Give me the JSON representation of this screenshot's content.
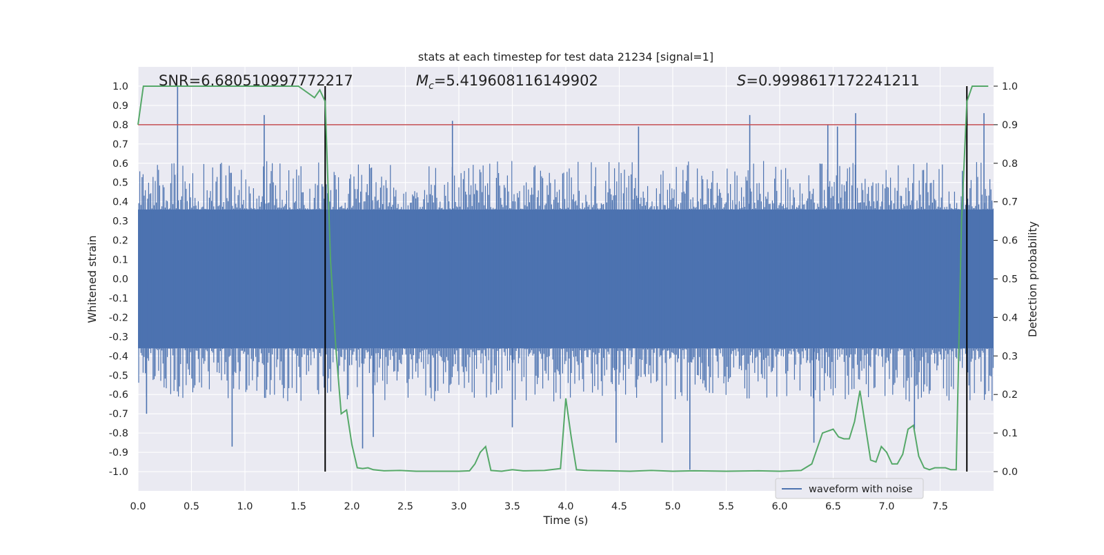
{
  "chart_data": {
    "type": "line",
    "title": "stats at each timestep for test data 21234 [signal=1]",
    "xlabel": "Time (s)",
    "ylabel": "Whitened strain",
    "y2label": "Detection probability",
    "xlim": [
      0.0,
      8.0
    ],
    "ylim": [
      -1.1,
      1.1
    ],
    "y2lim": [
      -0.05,
      1.05
    ],
    "xticks": [
      "0.0",
      "0.5",
      "1.0",
      "1.5",
      "2.0",
      "2.5",
      "3.0",
      "3.5",
      "4.0",
      "4.5",
      "5.0",
      "5.5",
      "6.0",
      "6.5",
      "7.0",
      "7.5"
    ],
    "yticks": [
      "1.0",
      "0.9",
      "0.8",
      "0.7",
      "0.6",
      "0.5",
      "0.4",
      "0.3",
      "0.2",
      "0.1",
      "0.0",
      "-0.1",
      "-0.2",
      "-0.3",
      "-0.4",
      "-0.5",
      "-0.6",
      "-0.7",
      "-0.8",
      "-0.9",
      "-1.0"
    ],
    "y2ticks": [
      "1.0",
      "0.9",
      "0.8",
      "0.7",
      "0.6",
      "0.5",
      "0.4",
      "0.3",
      "0.2",
      "0.1",
      "0.0"
    ],
    "grid": true,
    "legend": {
      "position": "bottom-right",
      "entries": [
        "waveform with noise"
      ]
    },
    "annotations": {
      "snr": "SNR=6.680510997772217",
      "mc_sym": "M",
      "mc_sub": "c",
      "mc_val": "=5.419608116149902",
      "s_sym": "S",
      "s_val": "=0.9998617172241211"
    },
    "threshold": {
      "value": 0.9,
      "axis": "y2",
      "color": "#c44e52"
    },
    "event_lines": {
      "x": [
        1.75,
        7.75
      ],
      "color": "#000000"
    },
    "waveform": {
      "name": "waveform with noise",
      "color": "#4c72b0",
      "band": 0.36,
      "spike_envelope": 0.6,
      "spikes": [
        {
          "x": 0.37,
          "y": 1.0
        },
        {
          "x": 0.08,
          "y": -0.7
        },
        {
          "x": 0.88,
          "y": -0.87
        },
        {
          "x": 1.18,
          "y": 0.85
        },
        {
          "x": 1.75,
          "y": 0.98
        },
        {
          "x": 2.1,
          "y": -0.88
        },
        {
          "x": 2.2,
          "y": -0.82
        },
        {
          "x": 2.94,
          "y": 0.82
        },
        {
          "x": 3.5,
          "y": -0.77
        },
        {
          "x": 4.68,
          "y": 0.79
        },
        {
          "x": 4.47,
          "y": -0.85
        },
        {
          "x": 4.9,
          "y": -0.85
        },
        {
          "x": 5.16,
          "y": -0.99
        },
        {
          "x": 5.72,
          "y": 0.85
        },
        {
          "x": 6.32,
          "y": -0.85
        },
        {
          "x": 6.45,
          "y": 0.8
        },
        {
          "x": 6.54,
          "y": 0.79
        },
        {
          "x": 6.71,
          "y": 0.86
        },
        {
          "x": 7.91,
          "y": 0.86
        },
        {
          "x": 7.26,
          "y": -0.78
        }
      ]
    },
    "probability": {
      "name": "detection probability",
      "color": "#55a868",
      "x": [
        0.0,
        0.05,
        0.15,
        0.3,
        0.6,
        1.0,
        1.3,
        1.5,
        1.6,
        1.65,
        1.7,
        1.75,
        1.8,
        1.85,
        1.9,
        1.95,
        2.0,
        2.05,
        2.1,
        2.15,
        2.2,
        2.3,
        2.45,
        2.6,
        2.8,
        3.0,
        3.1,
        3.15,
        3.2,
        3.25,
        3.3,
        3.4,
        3.5,
        3.6,
        3.8,
        3.95,
        4.0,
        4.05,
        4.1,
        4.2,
        4.4,
        4.6,
        4.8,
        5.0,
        5.2,
        5.5,
        5.8,
        6.0,
        6.2,
        6.3,
        6.4,
        6.5,
        6.55,
        6.6,
        6.65,
        6.7,
        6.75,
        6.8,
        6.85,
        6.9,
        6.95,
        7.0,
        7.05,
        7.1,
        7.15,
        7.2,
        7.25,
        7.3,
        7.35,
        7.4,
        7.45,
        7.55,
        7.6,
        7.65,
        7.7,
        7.75,
        7.8,
        7.85,
        7.9,
        7.95
      ],
      "y": [
        0.9,
        1.0,
        1.0,
        1.0,
        1.0,
        1.0,
        1.0,
        1.0,
        0.98,
        0.97,
        0.99,
        0.96,
        0.55,
        0.32,
        0.15,
        0.16,
        0.07,
        0.01,
        0.008,
        0.01,
        0.005,
        0.002,
        0.003,
        0.001,
        0.001,
        0.001,
        0.002,
        0.02,
        0.05,
        0.065,
        0.003,
        0.001,
        0.005,
        0.002,
        0.003,
        0.008,
        0.19,
        0.09,
        0.005,
        0.003,
        0.002,
        0.001,
        0.003,
        0.001,
        0.002,
        0.001,
        0.002,
        0.001,
        0.003,
        0.02,
        0.1,
        0.11,
        0.09,
        0.085,
        0.085,
        0.13,
        0.21,
        0.12,
        0.03,
        0.025,
        0.065,
        0.05,
        0.02,
        0.02,
        0.045,
        0.11,
        0.12,
        0.04,
        0.01,
        0.005,
        0.01,
        0.01,
        0.005,
        0.005,
        0.65,
        0.96,
        1.0,
        1.0,
        1.0,
        1.0
      ]
    }
  }
}
